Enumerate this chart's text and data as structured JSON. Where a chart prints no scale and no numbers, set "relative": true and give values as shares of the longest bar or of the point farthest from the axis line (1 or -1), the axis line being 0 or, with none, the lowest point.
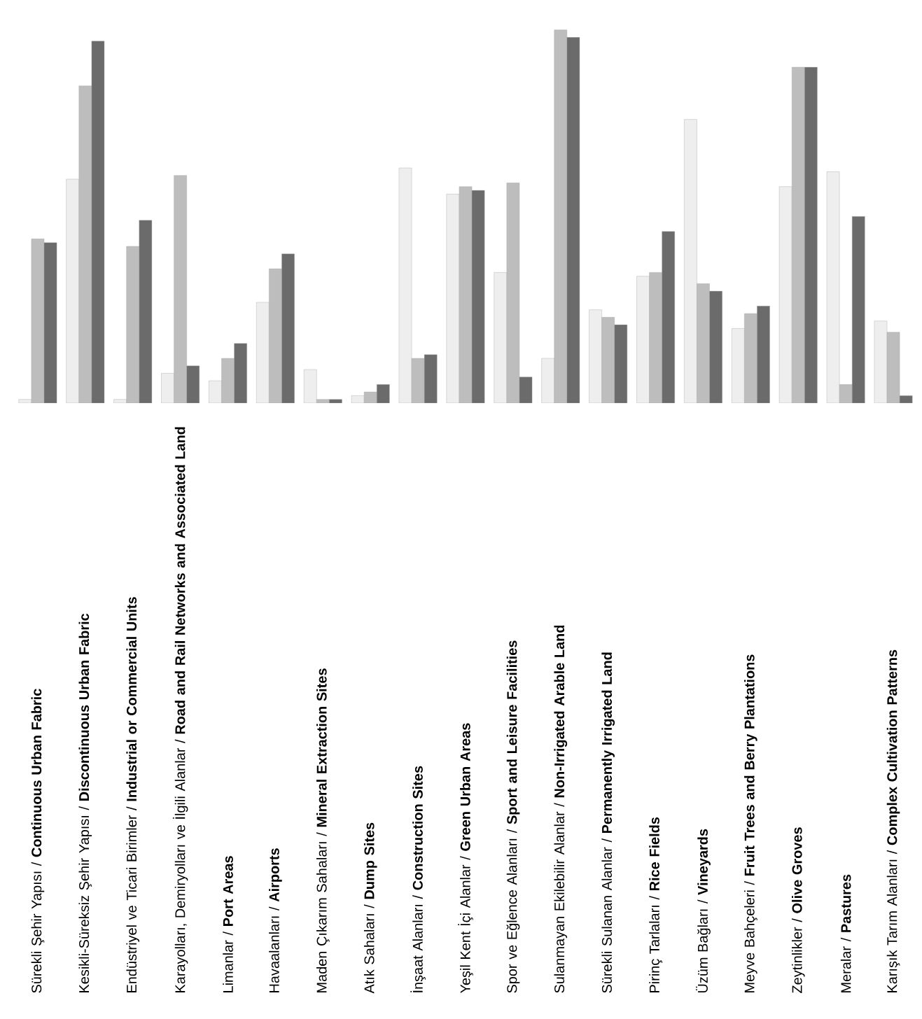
{
  "chart_data": {
    "type": "bar",
    "relative": true,
    "categories": [
      "Sürekli Şehir Yapısı / **Continuous Urban Fabric**",
      "Kesikli-Süreksiz Şehir Yapısı / **Discontinuous Urban Fabric**",
      "Endüstriyel ve Ticari Birimler / **Industrial or Commercial Units**",
      "Karayolları, Demiryolları ve İlgili Alanlar / **Road and Rail Networks and Associated Land**",
      "Limanlar / **Port Areas**",
      "Havaalanları / **Airports**",
      "Maden Çıkarım Sahaları / **Mineral Extraction Sites**",
      "Atık Sahaları / **Dump Sites**",
      "İnşaat Alanları / **Construction Sites**",
      "Yeşil Kent İçi Alanlar / **Green Urban Areas**",
      "Spor ve Eğlence Alanları / **Sport and Leisure Facilities**",
      "Sulanmayan Ekilebilir Alanlar / **Non-Irrigated Arable Land**",
      "Sürekli Sulanan Alanlar / **Permanently Irrigated Land**",
      "Pirinç Tarlaları / **Rice Fields**",
      "Üzüm Bağları / **Vineyards**",
      "Meyve Bahçeleri / **Fruit Trees and Berry Plantations**",
      "Zeytinlikler / **Olive Groves**",
      "Meralar / **Pastures**",
      "Karışık Tarım Alanları / **Complex Cultivation Patterns**"
    ],
    "series": [
      {
        "color": "#eeeeee",
        "values": [
          0.01,
          0.6,
          0.01,
          0.08,
          0.06,
          0.27,
          0.09,
          0.02,
          0.63,
          0.56,
          0.35,
          0.12,
          0.25,
          0.34,
          0.76,
          0.2,
          0.58,
          0.62,
          0.22
        ]
      },
      {
        "color": "#bdbdbd",
        "values": [
          0.44,
          0.85,
          0.42,
          0.61,
          0.12,
          0.36,
          0.01,
          0.03,
          0.12,
          0.58,
          0.59,
          1.0,
          0.23,
          0.35,
          0.32,
          0.24,
          0.9,
          0.05,
          0.19
        ]
      },
      {
        "color": "#6b6b6b",
        "values": [
          0.43,
          0.97,
          0.49,
          0.1,
          0.16,
          0.4,
          0.01,
          0.05,
          0.13,
          0.57,
          0.07,
          0.98,
          0.21,
          0.46,
          0.3,
          0.26,
          0.9,
          0.5,
          0.02
        ]
      }
    ]
  }
}
